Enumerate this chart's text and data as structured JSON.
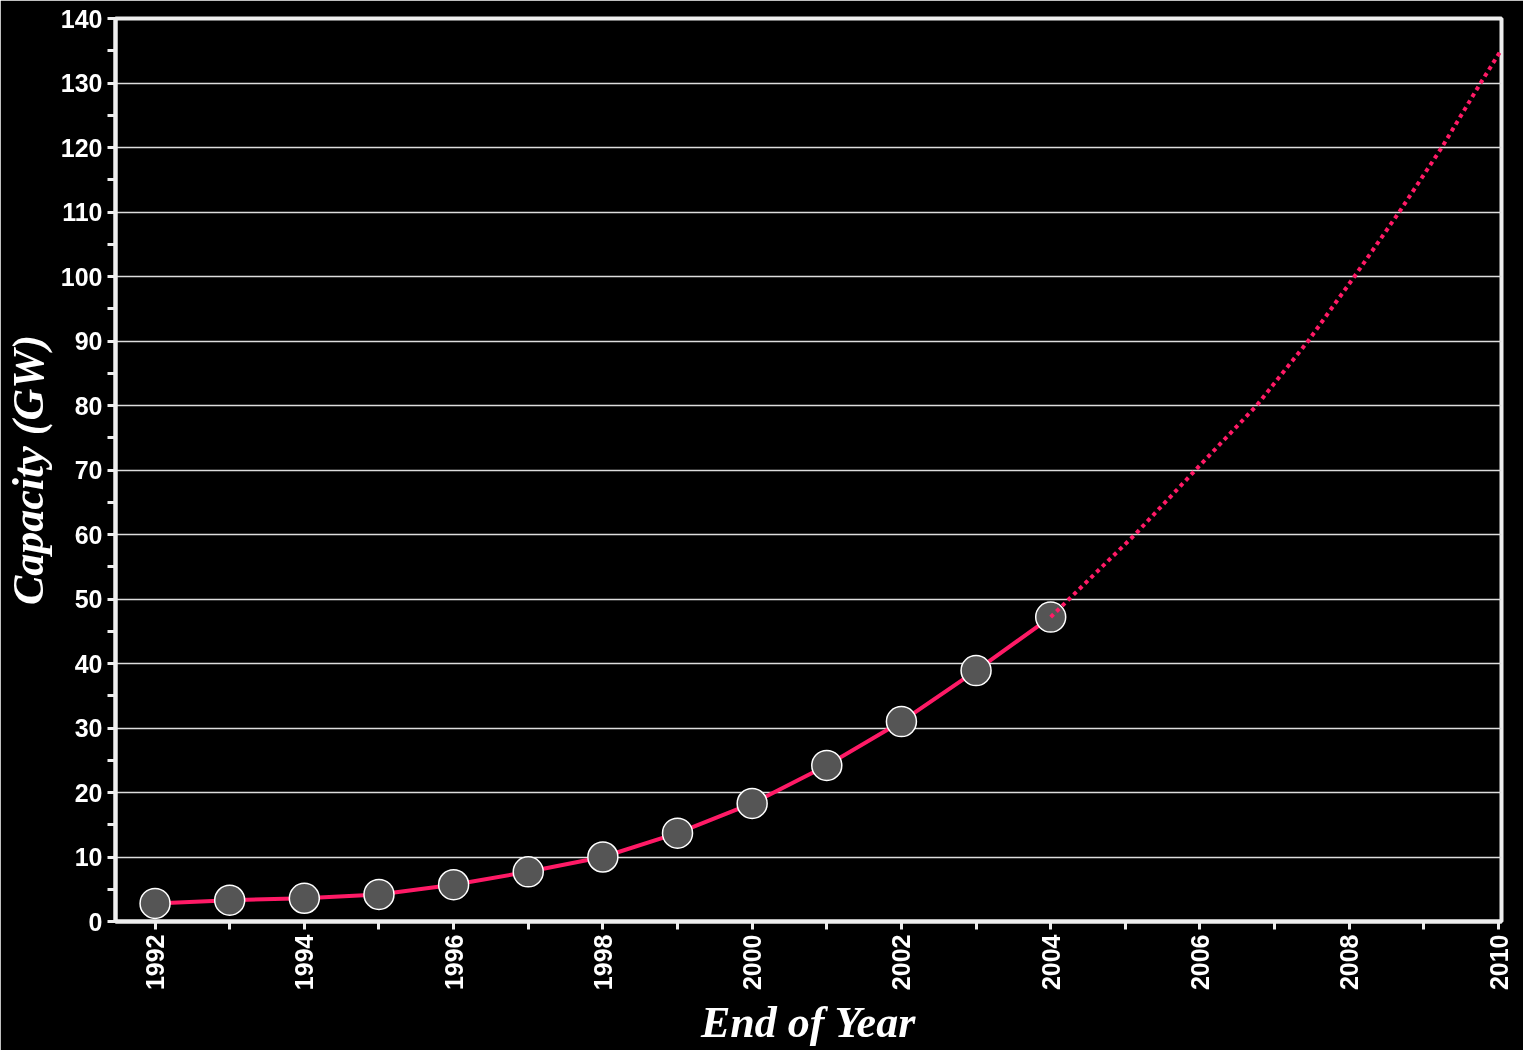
{
  "chart_data": {
    "type": "line",
    "xlabel": "End of Year",
    "ylabel": "Capacity (GW)",
    "grid": "y",
    "xlim": [
      1991.47,
      2010.04
    ],
    "ylim": [
      0,
      140
    ],
    "xticks": [
      1992,
      {
        "value": 1993,
        "label": null
      },
      1994,
      {
        "value": 1995,
        "label": null
      },
      1996,
      {
        "value": 1997,
        "label": null
      },
      1998,
      {
        "value": 1999,
        "label": null
      },
      2000,
      {
        "value": 2001,
        "label": null
      },
      2002,
      {
        "value": 2003,
        "label": null
      },
      2004,
      {
        "value": 2005,
        "label": null
      },
      2006,
      {
        "value": 2007,
        "label": null
      },
      2008,
      {
        "value": 2009,
        "label": null
      },
      2010
    ],
    "yticks": [
      0,
      {
        "value": 5,
        "label": null
      },
      10,
      {
        "value": 15,
        "label": null
      },
      20,
      {
        "value": 25,
        "label": null
      },
      30,
      {
        "value": 35,
        "label": null
      },
      40,
      {
        "value": 45,
        "label": null
      },
      50,
      {
        "value": 55,
        "label": null
      },
      60,
      {
        "value": 65,
        "label": null
      },
      70,
      {
        "value": 75,
        "label": null
      },
      80,
      {
        "value": 85,
        "label": null
      },
      90,
      {
        "value": 95,
        "label": null
      },
      100,
      {
        "value": 105,
        "label": null
      },
      110,
      {
        "value": 115,
        "label": null
      },
      120,
      {
        "value": 125,
        "label": null
      },
      130,
      {
        "value": 135,
        "label": null
      },
      140
    ],
    "series": [
      {
        "color": "#ff1a66",
        "marker": "circle",
        "line_style": "solid",
        "x": [
          1992,
          1993,
          1994,
          1995,
          1996,
          1997,
          1998,
          1999,
          2000,
          2001,
          2002,
          2003,
          2004
        ],
        "values": [
          2.8,
          3.3,
          3.6,
          4.2,
          5.7,
          7.7,
          10.0,
          13.7,
          18.3,
          24.2,
          31.0,
          38.9,
          47.2
        ]
      },
      {
        "color": "#ff1a66",
        "marker": "none",
        "line_style": "dotted",
        "x": [
          2004,
          2005.13,
          2005.94,
          2006.76,
          2007.45,
          2008.07,
          2008.67,
          2009.24,
          2009.76,
          2010.03
        ],
        "values": [
          47.2,
          60,
          70,
          80,
          90,
          100,
          110,
          120,
          130,
          135
        ]
      }
    ]
  }
}
